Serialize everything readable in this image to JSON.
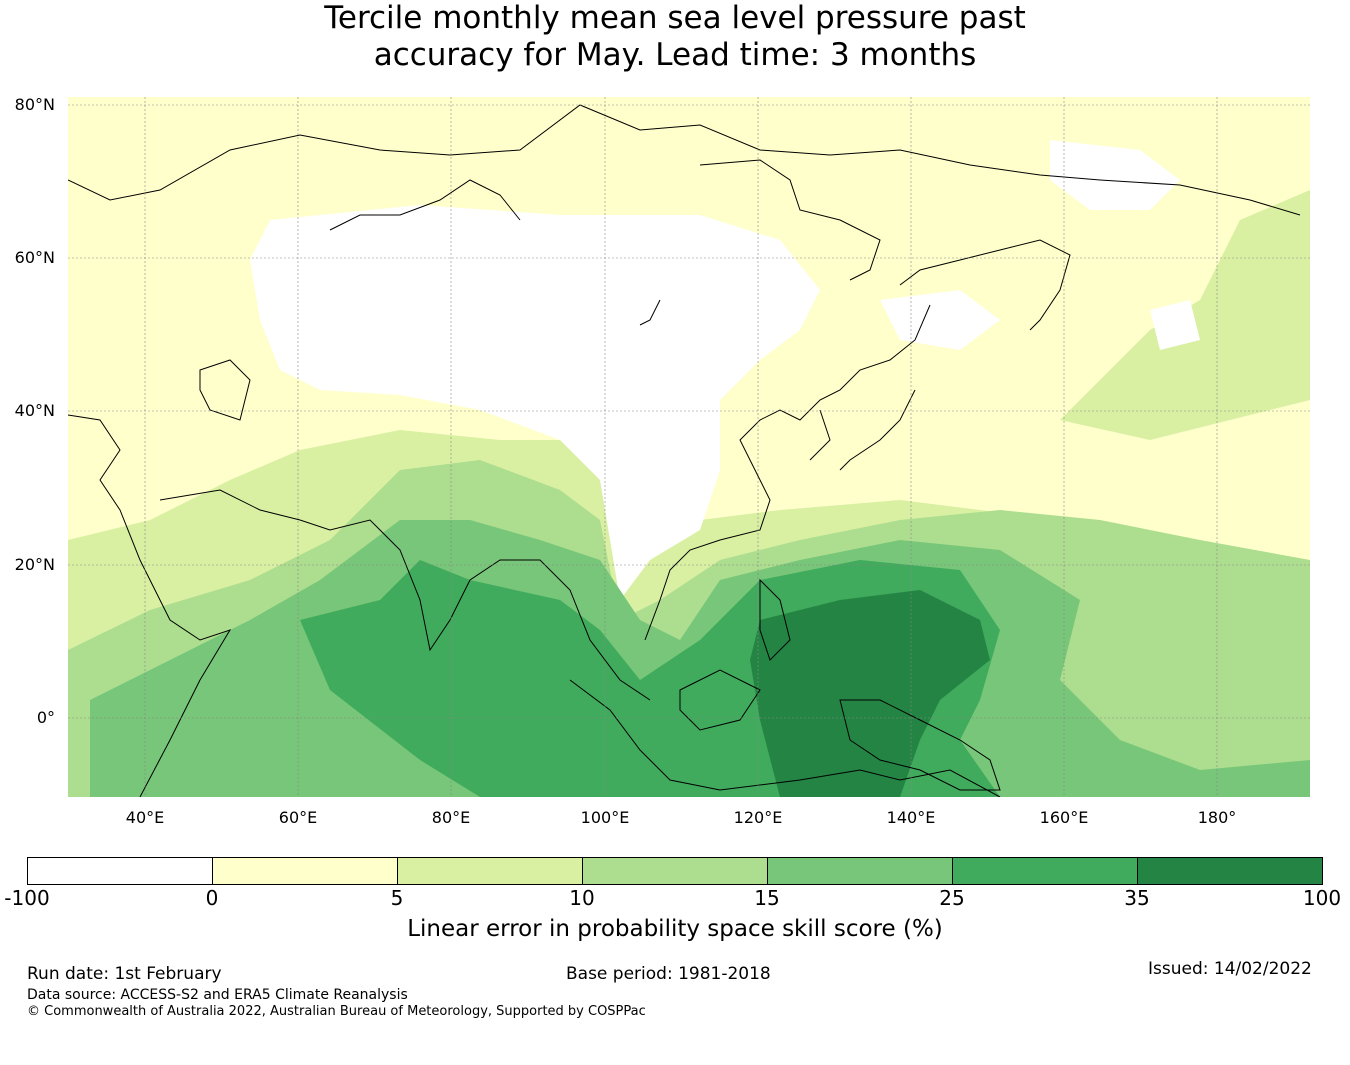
{
  "title": {
    "line1": "Tercile monthly mean sea level pressure past",
    "line2": "accuracy for May. Lead time: 3 months"
  },
  "map": {
    "lat_labels": [
      "80°N",
      "60°N",
      "40°N",
      "20°N",
      "0°"
    ],
    "lon_labels": [
      "40°E",
      "60°E",
      "80°E",
      "100°E",
      "120°E",
      "140°E",
      "160°E",
      "180°"
    ],
    "lon_range": [
      30,
      192
    ],
    "lat_range": [
      -10,
      81
    ]
  },
  "colorbar": {
    "ticks": [
      "-100",
      "0",
      "5",
      "10",
      "15",
      "25",
      "35",
      "100"
    ],
    "colors": [
      "#ffffff",
      "#ffffcc",
      "#d9f0a3",
      "#addd8e",
      "#78c679",
      "#41ab5d",
      "#238443"
    ],
    "label": "Linear error in probability space skill score (%)"
  },
  "footer": {
    "run_date": "Run date: 1st February",
    "base_period": "Base period: 1981-2018",
    "issued": "Issued: 14/02/2022",
    "data_source": "Data source: ACCESS-S2 and ERA5 Climate Reanalysis",
    "copyright": "© Commonwealth of Australia 2022, Australian Bureau of Meteorology, Supported by COSPPac"
  }
}
